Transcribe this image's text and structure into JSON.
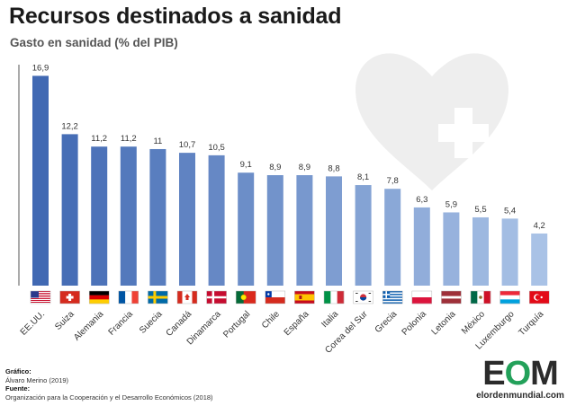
{
  "header": {
    "title": "Recursos destinados a sanidad",
    "subtitle": "Gasto en sanidad (% del PIB)"
  },
  "chart_data": {
    "type": "bar",
    "title": "Recursos destinados a sanidad",
    "subtitle": "Gasto en sanidad (% del PIB)",
    "xlabel": "",
    "ylabel": "",
    "ylim": [
      0,
      17.8
    ],
    "grid": false,
    "categories": [
      "EE.UU.",
      "Suiza",
      "Alemania",
      "Francia",
      "Suecia",
      "Canadá",
      "Dinamarca",
      "Portugal",
      "Chile",
      "España",
      "Italia",
      "Corea del Sur",
      "Grecia",
      "Polonia",
      "Letonia",
      "México",
      "Luxemburgo",
      "Turquía"
    ],
    "value_labels": [
      "16,9",
      "12,2",
      "11,2",
      "11,2",
      "11",
      "10,7",
      "10,5",
      "9,1",
      "8,9",
      "8,9",
      "8,8",
      "8,1",
      "7,8",
      "6,3",
      "5,9",
      "5,5",
      "5,4",
      "4,2"
    ],
    "values": [
      16.9,
      12.2,
      11.2,
      11.2,
      11.0,
      10.7,
      10.5,
      9.1,
      8.9,
      8.9,
      8.8,
      8.1,
      7.8,
      6.3,
      5.9,
      5.5,
      5.4,
      4.2
    ],
    "bar_color_start": "#4169b3",
    "bar_color_end": "#a9c2e6"
  },
  "decor": {
    "heart_icon": "heart-with-cross-icon",
    "heart_color": "#eeeeee",
    "cross_color": "#ffffff",
    "flag_icons": [
      "us-flag-icon",
      "switzerland-flag-icon",
      "germany-flag-icon",
      "france-flag-icon",
      "sweden-flag-icon",
      "canada-flag-icon",
      "denmark-flag-icon",
      "portugal-flag-icon",
      "chile-flag-icon",
      "spain-flag-icon",
      "italy-flag-icon",
      "south-korea-flag-icon",
      "greece-flag-icon",
      "poland-flag-icon",
      "latvia-flag-icon",
      "mexico-flag-icon",
      "luxembourg-flag-icon",
      "turkey-flag-icon"
    ]
  },
  "credits": {
    "grafico_label": "Gráfico:",
    "grafico_value": "Álvaro Merino (2019)",
    "fuente_label": "Fuente:",
    "fuente_value": "Organización para la Cooperación y el Desarrollo Económicos (2018)"
  },
  "logo": {
    "mark_e": "E",
    "mark_o": "O",
    "mark_m": "M",
    "url": "elordenmundial.com",
    "accent_color": "#23a15a"
  }
}
